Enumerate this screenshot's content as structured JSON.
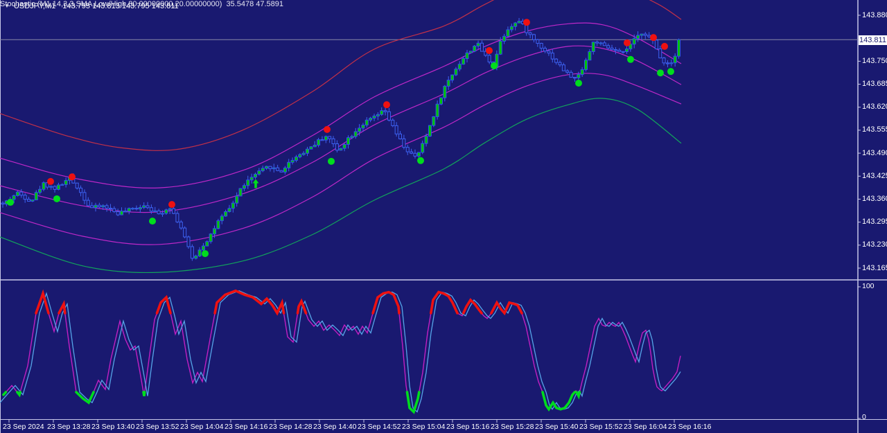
{
  "window": {
    "symbol_period": "USDJPY,M1",
    "ohlc_text": "143.795 143.813 143.795 143.811",
    "dropdown_icon": "triangle-down"
  },
  "price_axis": {
    "current": "143.811",
    "ticks": [
      "143.880",
      "143.750",
      "143.685",
      "143.620",
      "143.555",
      "143.490",
      "143.425",
      "143.360",
      "143.295",
      "143.230",
      "143.165"
    ]
  },
  "time_axis": {
    "labels": [
      "23 Sep 2024",
      "23 Sep 13:28",
      "23 Sep 13:40",
      "23 Sep 13:52",
      "23 Sep 14:04",
      "23 Sep 14:16",
      "23 Sep 14:28",
      "23 Sep 14:40",
      "23 Sep 14:52",
      "23 Sep 15:04",
      "23 Sep 15:16",
      "23 Sep 15:28",
      "23 Sep 15:40",
      "23 Sep 15:52",
      "23 Sep 16:04",
      "23 Sep 16:16"
    ],
    "xs": [
      4,
      68,
      132,
      196,
      260,
      324,
      388,
      452,
      516,
      580,
      644,
      708,
      772,
      836,
      900,
      964
    ]
  },
  "stochastic": {
    "label": "Stochastic (M1,14,3,3,SMA,Low/High,80.00000000,20.00000000)",
    "values_text": "35.5478 47.5891",
    "axis_max": "100",
    "axis_min": "0",
    "k_value": 35.5478,
    "d_value": 47.5891,
    "upper_level": 80,
    "lower_level": 20
  },
  "colors": {
    "background": "#191970",
    "panel_border": "#C8C8E8",
    "current_price_line": "#8A8AA8",
    "bull_body": "#00C400",
    "bear_fill": "#191970",
    "wick_blue": "#3D62F2",
    "band_red": "#C23048",
    "band_magenta": "#BE28C8",
    "band_green": "#12A35C",
    "stoch_k": "#55A5E8",
    "stoch_d": "#C21FC2",
    "overbought_seg": "#EE1111",
    "oversold_seg": "#00DC1E",
    "sell_dot": "#EE1111",
    "buy_dot": "#00DC1E",
    "text": "#FFFFFF",
    "price_box_bg": "#FFFFFF",
    "price_box_text": "#191970"
  },
  "chart_data": {
    "type": "candlestick",
    "symbol": "USDJPY",
    "period": "M1",
    "title": "USDJPY,M1 143.795 143.813 143.795 143.811",
    "ylim": [
      143.165,
      143.88
    ],
    "price_tick_step": 0.065,
    "current_close": 143.811,
    "close_path": [
      [
        4,
        143.345
      ],
      [
        25,
        143.378
      ],
      [
        45,
        143.355
      ],
      [
        62,
        143.404
      ],
      [
        80,
        143.39
      ],
      [
        100,
        143.418
      ],
      [
        112,
        143.394
      ],
      [
        130,
        143.335
      ],
      [
        150,
        143.341
      ],
      [
        170,
        143.32
      ],
      [
        190,
        143.331
      ],
      [
        210,
        143.345
      ],
      [
        228,
        143.316
      ],
      [
        245,
        143.339
      ],
      [
        262,
        143.277
      ],
      [
        278,
        143.188
      ],
      [
        288,
        143.218
      ],
      [
        300,
        143.247
      ],
      [
        315,
        143.296
      ],
      [
        332,
        143.335
      ],
      [
        350,
        143.398
      ],
      [
        368,
        143.429
      ],
      [
        388,
        143.453
      ],
      [
        405,
        143.437
      ],
      [
        422,
        143.473
      ],
      [
        440,
        143.496
      ],
      [
        458,
        143.522
      ],
      [
        472,
        143.541
      ],
      [
        487,
        143.496
      ],
      [
        502,
        143.531
      ],
      [
        520,
        143.567
      ],
      [
        538,
        143.59
      ],
      [
        555,
        143.61
      ],
      [
        570,
        143.551
      ],
      [
        585,
        143.502
      ],
      [
        600,
        143.476
      ],
      [
        612,
        143.522
      ],
      [
        628,
        143.61
      ],
      [
        642,
        143.678
      ],
      [
        658,
        143.731
      ],
      [
        672,
        143.766
      ],
      [
        688,
        143.802
      ],
      [
        700,
        143.766
      ],
      [
        712,
        143.737
      ],
      [
        722,
        143.806
      ],
      [
        735,
        143.849
      ],
      [
        750,
        143.864
      ],
      [
        762,
        143.829
      ],
      [
        775,
        143.802
      ],
      [
        790,
        143.776
      ],
      [
        805,
        143.743
      ],
      [
        820,
        143.712
      ],
      [
        832,
        143.698
      ],
      [
        845,
        143.751
      ],
      [
        858,
        143.81
      ],
      [
        872,
        143.79
      ],
      [
        885,
        143.782
      ],
      [
        898,
        143.77
      ],
      [
        912,
        143.802
      ],
      [
        928,
        143.835
      ],
      [
        942,
        143.806
      ],
      [
        955,
        143.751
      ],
      [
        968,
        143.743
      ],
      [
        978,
        143.786
      ],
      [
        982,
        143.811
      ]
    ],
    "bands": [
      {
        "name": "outer-upper-red",
        "color_key": "band_red",
        "points": [
          [
            0,
            143.602
          ],
          [
            100,
            143.537
          ],
          [
            180,
            143.504
          ],
          [
            260,
            143.502
          ],
          [
            350,
            143.555
          ],
          [
            450,
            143.663
          ],
          [
            540,
            143.784
          ],
          [
            640,
            143.849
          ],
          [
            700,
            143.911
          ],
          [
            760,
            143.966
          ],
          [
            830,
            143.986
          ],
          [
            900,
            143.954
          ],
          [
            950,
            143.911
          ],
          [
            983,
            143.868
          ]
        ]
      },
      {
        "name": "inner-upper-magenta",
        "color_key": "band_magenta",
        "points": [
          [
            0,
            143.476
          ],
          [
            110,
            143.418
          ],
          [
            230,
            143.392
          ],
          [
            350,
            143.441
          ],
          [
            450,
            143.539
          ],
          [
            540,
            143.649
          ],
          [
            640,
            143.735
          ],
          [
            700,
            143.792
          ],
          [
            760,
            143.835
          ],
          [
            820,
            143.856
          ],
          [
            870,
            143.853
          ],
          [
            920,
            143.815
          ],
          [
            983,
            143.743
          ]
        ]
      },
      {
        "name": "middle-magenta",
        "color_key": "band_magenta",
        "points": [
          [
            0,
            143.398
          ],
          [
            120,
            143.341
          ],
          [
            230,
            143.324
          ],
          [
            350,
            143.375
          ],
          [
            450,
            143.463
          ],
          [
            540,
            143.57
          ],
          [
            640,
            143.657
          ],
          [
            700,
            143.717
          ],
          [
            760,
            143.764
          ],
          [
            820,
            143.792
          ],
          [
            870,
            143.786
          ],
          [
            920,
            143.751
          ],
          [
            983,
            143.684
          ]
        ]
      },
      {
        "name": "inner-lower-magenta",
        "color_key": "band_magenta",
        "points": [
          [
            0,
            143.322
          ],
          [
            120,
            143.255
          ],
          [
            230,
            143.232
          ],
          [
            350,
            143.277
          ],
          [
            450,
            143.365
          ],
          [
            540,
            143.474
          ],
          [
            640,
            143.563
          ],
          [
            700,
            143.627
          ],
          [
            760,
            143.68
          ],
          [
            820,
            143.712
          ],
          [
            870,
            143.712
          ],
          [
            920,
            143.68
          ],
          [
            983,
            143.629
          ]
        ]
      },
      {
        "name": "outer-lower-green",
        "color_key": "band_green",
        "points": [
          [
            0,
            143.253
          ],
          [
            120,
            143.171
          ],
          [
            230,
            143.153
          ],
          [
            350,
            143.185
          ],
          [
            450,
            143.259
          ],
          [
            540,
            143.357
          ],
          [
            640,
            143.445
          ],
          [
            700,
            143.52
          ],
          [
            760,
            143.586
          ],
          [
            820,
            143.627
          ],
          [
            870,
            143.645
          ],
          [
            920,
            143.614
          ],
          [
            983,
            143.518
          ]
        ]
      }
    ],
    "signals": {
      "sell_dots": [
        [
          73,
          143.41
        ],
        [
          104,
          143.423
        ],
        [
          248,
          143.345
        ],
        [
          472,
          143.557
        ],
        [
          558,
          143.627
        ],
        [
          706,
          143.78
        ],
        [
          760,
          143.86
        ],
        [
          905,
          143.802
        ],
        [
          943,
          143.817
        ],
        [
          959,
          143.792
        ]
      ],
      "buy_dots": [
        [
          15,
          143.351
        ],
        [
          82,
          143.361
        ],
        [
          220,
          143.298
        ],
        [
          296,
          143.206
        ],
        [
          478,
          143.467
        ],
        [
          607,
          143.469
        ],
        [
          713,
          143.737
        ],
        [
          835,
          143.688
        ],
        [
          910,
          143.755
        ],
        [
          953,
          143.717
        ],
        [
          968,
          143.721
        ]
      ],
      "buy_arrows": [
        [
          369,
          143.403
        ]
      ]
    },
    "stochastic_k": [
      [
        0,
        12
      ],
      [
        10,
        18
      ],
      [
        22,
        25
      ],
      [
        33,
        18
      ],
      [
        45,
        40
      ],
      [
        57,
        80
      ],
      [
        67,
        95
      ],
      [
        75,
        80
      ],
      [
        83,
        66
      ],
      [
        90,
        80
      ],
      [
        97,
        87
      ],
      [
        105,
        55
      ],
      [
        115,
        20
      ],
      [
        125,
        15
      ],
      [
        133,
        12
      ],
      [
        140,
        20
      ],
      [
        147,
        29
      ],
      [
        157,
        22
      ],
      [
        165,
        45
      ],
      [
        178,
        74
      ],
      [
        186,
        60
      ],
      [
        193,
        52
      ],
      [
        200,
        55
      ],
      [
        207,
        35
      ],
      [
        213,
        17
      ],
      [
        220,
        45
      ],
      [
        228,
        75
      ],
      [
        237,
        88
      ],
      [
        245,
        92
      ],
      [
        252,
        78
      ],
      [
        258,
        64
      ],
      [
        266,
        74
      ],
      [
        275,
        45
      ],
      [
        283,
        27
      ],
      [
        290,
        35
      ],
      [
        297,
        28
      ],
      [
        308,
        60
      ],
      [
        318,
        88
      ],
      [
        330,
        94
      ],
      [
        345,
        97
      ],
      [
        358,
        94
      ],
      [
        370,
        92
      ],
      [
        382,
        87
      ],
      [
        390,
        91
      ],
      [
        398,
        86
      ],
      [
        405,
        80
      ],
      [
        412,
        88
      ],
      [
        420,
        62
      ],
      [
        428,
        58
      ],
      [
        436,
        85
      ],
      [
        440,
        89
      ],
      [
        450,
        75
      ],
      [
        458,
        70
      ],
      [
        465,
        74
      ],
      [
        472,
        67
      ],
      [
        480,
        71
      ],
      [
        488,
        67
      ],
      [
        495,
        63
      ],
      [
        502,
        71
      ],
      [
        508,
        67
      ],
      [
        515,
        70
      ],
      [
        522,
        64
      ],
      [
        528,
        70
      ],
      [
        535,
        65
      ],
      [
        542,
        78
      ],
      [
        550,
        92
      ],
      [
        558,
        95
      ],
      [
        566,
        96
      ],
      [
        573,
        94
      ],
      [
        580,
        85
      ],
      [
        586,
        55
      ],
      [
        591,
        25
      ],
      [
        596,
        8
      ],
      [
        602,
        5
      ],
      [
        608,
        15
      ],
      [
        615,
        35
      ],
      [
        622,
        65
      ],
      [
        630,
        90
      ],
      [
        638,
        96
      ],
      [
        645,
        95
      ],
      [
        652,
        93
      ],
      [
        658,
        88
      ],
      [
        665,
        80
      ],
      [
        672,
        78
      ],
      [
        678,
        85
      ],
      [
        684,
        90
      ],
      [
        690,
        87
      ],
      [
        697,
        82
      ],
      [
        703,
        78
      ],
      [
        708,
        76
      ],
      [
        714,
        80
      ],
      [
        722,
        88
      ],
      [
        728,
        83
      ],
      [
        733,
        80
      ],
      [
        740,
        88
      ],
      [
        747,
        87
      ],
      [
        752,
        86
      ],
      [
        758,
        80
      ],
      [
        764,
        70
      ],
      [
        770,
        55
      ],
      [
        776,
        40
      ],
      [
        782,
        28
      ],
      [
        788,
        20
      ],
      [
        793,
        10
      ],
      [
        797,
        7
      ],
      [
        803,
        12
      ],
      [
        808,
        8
      ],
      [
        814,
        7
      ],
      [
        820,
        8
      ],
      [
        826,
        12
      ],
      [
        831,
        18
      ],
      [
        836,
        21
      ],
      [
        840,
        17
      ],
      [
        845,
        28
      ],
      [
        851,
        40
      ],
      [
        857,
        55
      ],
      [
        863,
        70
      ],
      [
        869,
        76
      ],
      [
        874,
        71
      ],
      [
        879,
        70
      ],
      [
        884,
        73
      ],
      [
        889,
        71
      ],
      [
        893,
        70
      ],
      [
        898,
        73
      ],
      [
        903,
        68
      ],
      [
        908,
        62
      ],
      [
        913,
        55
      ],
      [
        918,
        48
      ],
      [
        922,
        43
      ],
      [
        927,
        55
      ],
      [
        932,
        65
      ],
      [
        937,
        67
      ],
      [
        941,
        60
      ],
      [
        944,
        50
      ],
      [
        947,
        38
      ],
      [
        950,
        30
      ],
      [
        953,
        24
      ],
      [
        957,
        22
      ],
      [
        960,
        21
      ],
      [
        965,
        24
      ],
      [
        970,
        27
      ],
      [
        975,
        30
      ],
      [
        979,
        33
      ],
      [
        982,
        35.5
      ]
    ],
    "stochastic_d_rule": {
      "shift_x": -5,
      "end_point": [
        982,
        47.5891
      ]
    }
  }
}
